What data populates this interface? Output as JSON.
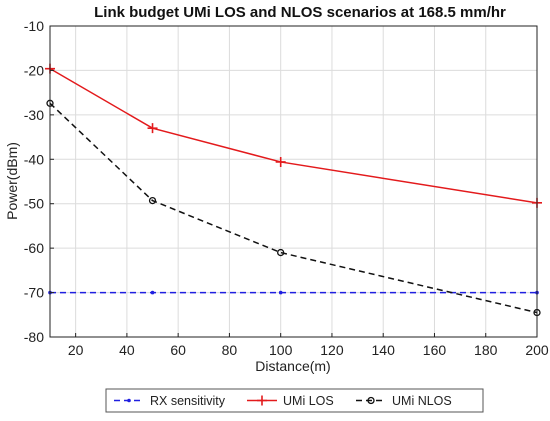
{
  "chart_data": {
    "type": "line",
    "title": "Link budget UMi LOS and NLOS scenarios at 168.5 mm/hr",
    "xlabel": "Distance(m)",
    "ylabel": "Power(dBm)",
    "xlim": [
      10,
      200
    ],
    "ylim": [
      -80,
      -10
    ],
    "xticks": [
      "20",
      "40",
      "60",
      "80",
      "100",
      "120",
      "140",
      "160",
      "180",
      "200"
    ],
    "yticks": [
      "-10",
      "-20",
      "-30",
      "-40",
      "-50",
      "-60",
      "-70",
      "-80"
    ],
    "grid": true,
    "legend_position": "bottom-outside",
    "series": [
      {
        "name": "RX sensitivity",
        "x": [
          10,
          50,
          100,
          200
        ],
        "y": [
          -70,
          -70,
          -70,
          -70
        ],
        "color": "#1f1fe0",
        "line_style": "dashed",
        "marker": "dot"
      },
      {
        "name": "UMi LOS",
        "x": [
          10,
          50,
          100,
          200
        ],
        "y": [
          -19.6,
          -33.0,
          -40.6,
          -49.8
        ],
        "color": "#e31a1c",
        "line_style": "solid",
        "marker": "plus"
      },
      {
        "name": "UMi NLOS",
        "x": [
          10,
          50,
          100,
          200
        ],
        "y": [
          -27.4,
          -49.3,
          -61.0,
          -74.5
        ],
        "color": "#111111",
        "line_style": "dashed",
        "marker": "circle"
      }
    ]
  }
}
